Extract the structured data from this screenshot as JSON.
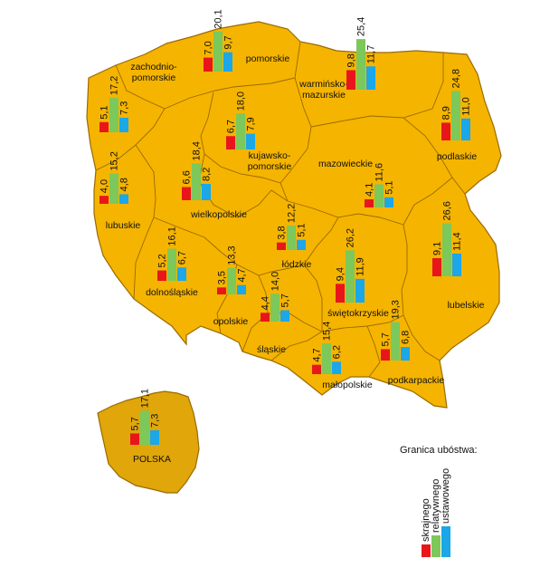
{
  "colors": {
    "ocean": "#ffffff",
    "country_fill": "#F5B400",
    "country_inset_fill": "#E0A60A",
    "border": "#9a6a00",
    "skrajnego": "#E8161B",
    "relatywnego": "#7CC85A",
    "ustawowego": "#1BA7E8"
  },
  "legend": {
    "title": "Granica ubóstwa:",
    "items": [
      "skrajnego",
      "relatywnego",
      "ustawowego"
    ]
  },
  "inset": {
    "label": "POLSKA",
    "values": [
      "5,7",
      "17,1",
      "7,3"
    ],
    "numeric": [
      5.7,
      17.1,
      7.3
    ]
  },
  "regions": [
    {
      "id": "zachodniopomorskie",
      "label_lines": [
        "zachodnio-",
        "pomorskie"
      ],
      "values": [
        "5,1",
        "17,2",
        "7,3"
      ],
      "numeric": [
        5.1,
        17.2,
        7.3
      ]
    },
    {
      "id": "pomorskie",
      "label_lines": [
        "pomorskie"
      ],
      "values": [
        "7,0",
        "20,1",
        "9,7"
      ],
      "numeric": [
        7.0,
        20.1,
        9.7
      ]
    },
    {
      "id": "warminsko-mazurskie",
      "label_lines": [
        "warmińsko-",
        "mazurskie"
      ],
      "values": [
        "9,8",
        "25,4",
        "11,7"
      ],
      "numeric": [
        9.8,
        25.4,
        11.7
      ]
    },
    {
      "id": "podlaskie",
      "label_lines": [
        "podlaskie"
      ],
      "values": [
        "8,9",
        "24,8",
        "11,0"
      ],
      "numeric": [
        8.9,
        24.8,
        11.0
      ]
    },
    {
      "id": "kujawsko-pomorskie",
      "label_lines": [
        "kujawsko-",
        "pomorskie"
      ],
      "values": [
        "6,7",
        "18,0",
        "7,9"
      ],
      "numeric": [
        6.7,
        18.0,
        7.9
      ]
    },
    {
      "id": "mazowieckie",
      "label_lines": [
        "mazowieckie"
      ],
      "values": [
        "4,1",
        "11,6",
        "5,1"
      ],
      "numeric": [
        4.1,
        11.6,
        5.1
      ]
    },
    {
      "id": "lubuskie",
      "label_lines": [
        "lubuskie"
      ],
      "values": [
        "4,0",
        "15,2",
        "4,8"
      ],
      "numeric": [
        4.0,
        15.2,
        4.8
      ]
    },
    {
      "id": "wielkopolskie",
      "label_lines": [
        "wielkopolskie"
      ],
      "values": [
        "6,6",
        "18,4",
        "8,2"
      ],
      "numeric": [
        6.6,
        18.4,
        8.2
      ]
    },
    {
      "id": "lodzkie",
      "label_lines": [
        "łódzkie"
      ],
      "values": [
        "3,8",
        "12,2",
        "5,1"
      ],
      "numeric": [
        3.8,
        12.2,
        5.1
      ]
    },
    {
      "id": "lubelskie",
      "label_lines": [
        "lubelskie"
      ],
      "values": [
        "9,1",
        "26,6",
        "11,4"
      ],
      "numeric": [
        9.1,
        26.6,
        11.4
      ]
    },
    {
      "id": "dolnoslaskie",
      "label_lines": [
        "dolnośląskie"
      ],
      "values": [
        "5,2",
        "16,1",
        "6,7"
      ],
      "numeric": [
        5.2,
        16.1,
        6.7
      ]
    },
    {
      "id": "opolskie",
      "label_lines": [
        "opolskie"
      ],
      "values": [
        "3,5",
        "13,3",
        "4,7"
      ],
      "numeric": [
        3.5,
        13.3,
        4.7
      ]
    },
    {
      "id": "swietokrzyskie",
      "label_lines": [
        "świętokrzyskie"
      ],
      "values": [
        "9,4",
        "26,2",
        "11,9"
      ],
      "numeric": [
        9.4,
        26.2,
        11.9
      ]
    },
    {
      "id": "slaskie",
      "label_lines": [
        "śląskie"
      ],
      "values": [
        "4,4",
        "14,0",
        "5,7"
      ],
      "numeric": [
        4.4,
        14.0,
        5.7
      ]
    },
    {
      "id": "malopolskie",
      "label_lines": [
        "małopolskie"
      ],
      "values": [
        "4,7",
        "15,4",
        "6,2"
      ],
      "numeric": [
        4.7,
        15.4,
        6.2
      ]
    },
    {
      "id": "podkarpackie",
      "label_lines": [
        "podkarpackie"
      ],
      "values": [
        "5,7",
        "19,3",
        "6,8"
      ],
      "numeric": [
        5.7,
        19.3,
        6.8
      ]
    }
  ]
}
